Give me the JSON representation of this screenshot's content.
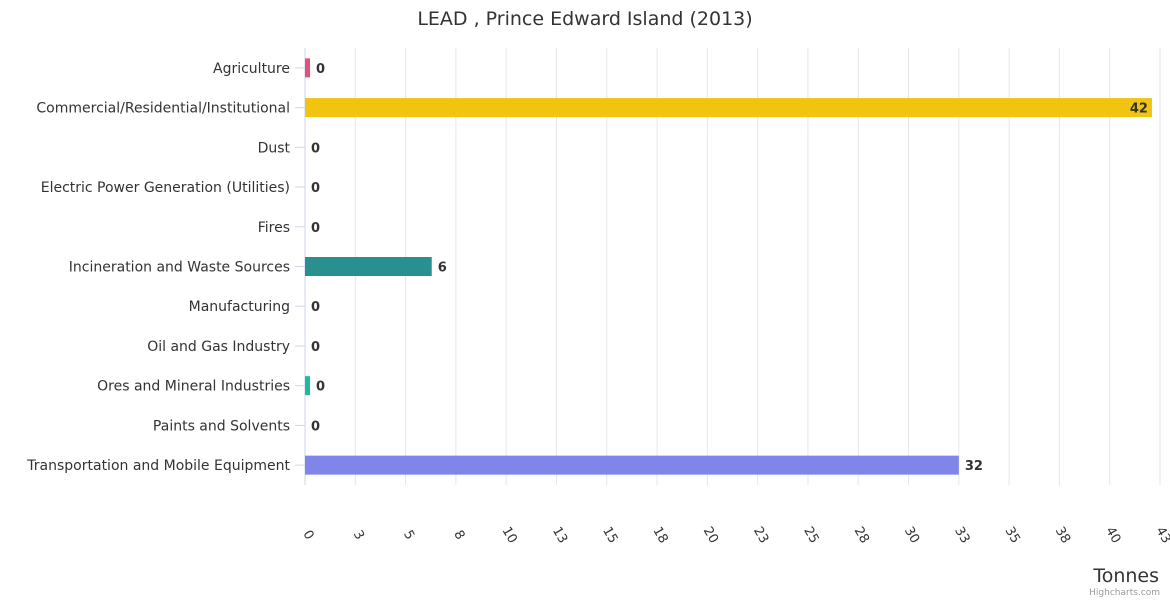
{
  "chart_data": {
    "type": "bar",
    "orientation": "horizontal",
    "title": "LEAD , Prince Edward Island (2013)",
    "xlabel": "Tonnes",
    "ylabel": "",
    "categories": [
      "Agriculture",
      "Commercial/Residential/Institutional",
      "Dust",
      "Electric Power Generation (Utilities)",
      "Fires",
      "Incineration and Waste Sources",
      "Manufacturing",
      "Oil and Gas Industry",
      "Ores and Mineral Industries",
      "Paints and Solvents",
      "Transportation and Mobile Equipment"
    ],
    "values": [
      0.25,
      42.1,
      0,
      0,
      0,
      6.3,
      0,
      0,
      0.25,
      0,
      32.5
    ],
    "data_labels": [
      "0",
      "42",
      "0",
      "0",
      "0",
      "6",
      "0",
      "0",
      "0",
      "0",
      "32"
    ],
    "colors": [
      "#e8507a",
      "#f1c40f",
      "#7cb5ec",
      "#7cb5ec",
      "#7cb5ec",
      "#2a8f8f",
      "#7cb5ec",
      "#7cb5ec",
      "#1abc9c",
      "#7cb5ec",
      "#8085e9"
    ],
    "xlim": [
      0,
      42.5
    ],
    "ticks": [
      0,
      2.5,
      5,
      7.5,
      10,
      12.5,
      15,
      17.5,
      20,
      22.5,
      25,
      27.5,
      30,
      32.5,
      35,
      37.5,
      40,
      42.5
    ],
    "tick_labels": [
      "0",
      "3",
      "5",
      "8",
      "10",
      "13",
      "15",
      "18",
      "20",
      "23",
      "25",
      "28",
      "30",
      "33",
      "35",
      "38",
      "40",
      "43"
    ],
    "grid": true,
    "legend": "none"
  },
  "credits": "Highcharts.com"
}
